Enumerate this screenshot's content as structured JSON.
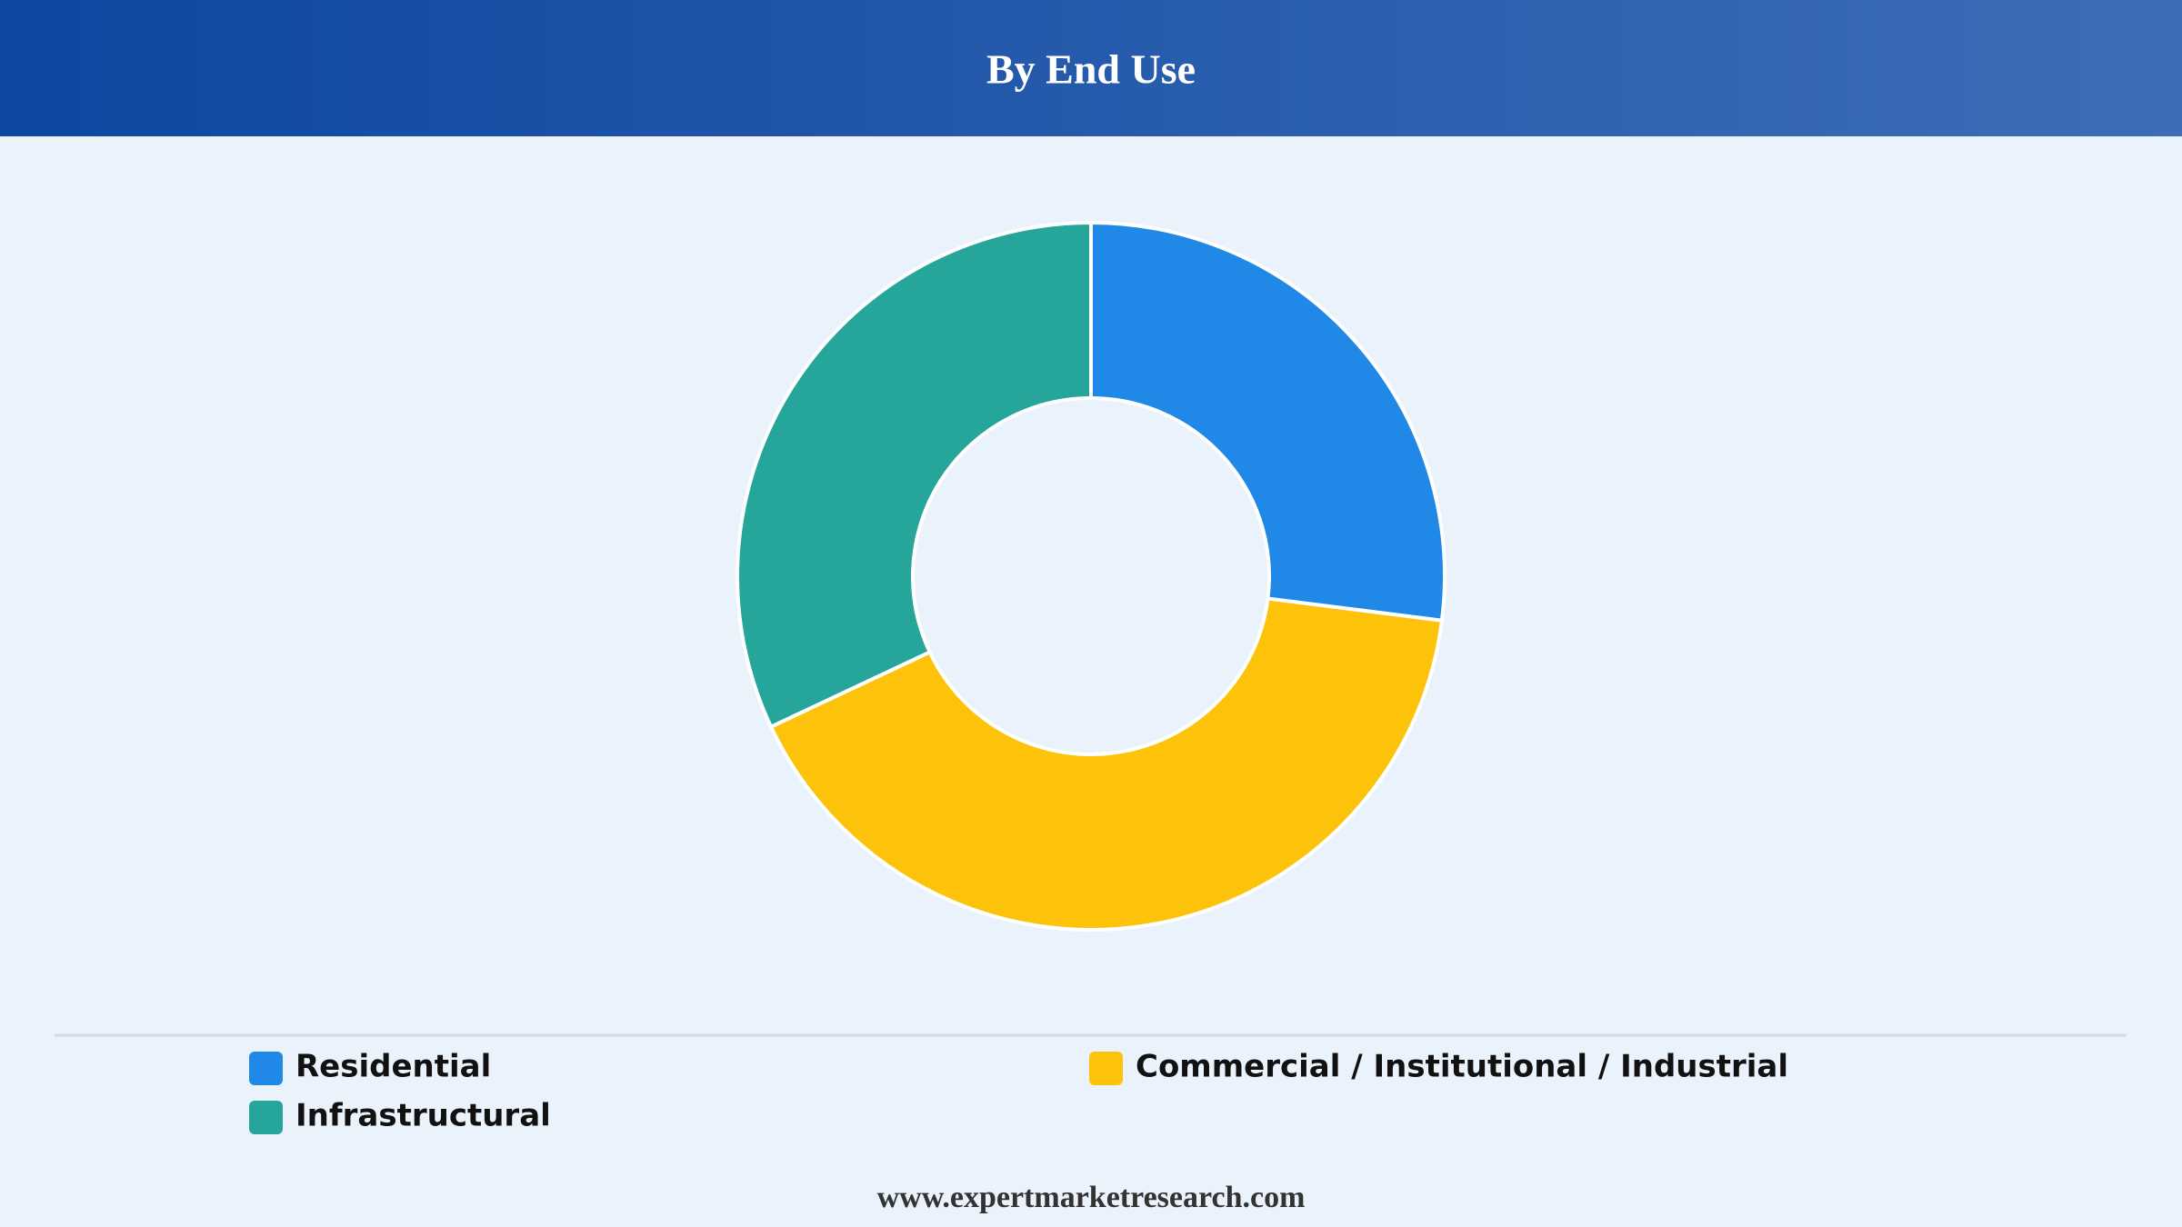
{
  "chart_data": {
    "type": "donut",
    "title": "By End Use",
    "categories": [
      "Residential",
      "Commercial / Institutional / Industrial",
      "Infrastructural"
    ],
    "values": [
      27,
      41,
      32
    ],
    "colors": [
      "#2088e6",
      "#fdc20a",
      "#26a69a"
    ]
  },
  "footer": "www.expertmarketresearch.com"
}
